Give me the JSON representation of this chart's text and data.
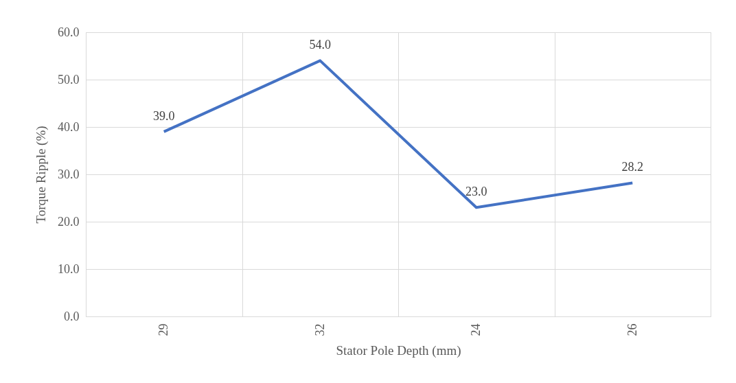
{
  "chart_data": {
    "type": "line",
    "xlabel": "Stator Pole Depth (mm)",
    "ylabel": "Torque Ripple (%)",
    "categories": [
      "29",
      "32",
      "24",
      "26"
    ],
    "series": [
      {
        "color": "#4472c4",
        "values": [
          39.0,
          54.0,
          23.0,
          28.2
        ],
        "value_labels": [
          "39.0",
          "54.0",
          "23.0",
          "28.2"
        ]
      }
    ],
    "ylim": [
      0,
      60
    ],
    "yticks": [
      {
        "value": 0,
        "label": "0.0"
      },
      {
        "value": 10,
        "label": "10.0"
      },
      {
        "value": 20,
        "label": "20.0"
      },
      {
        "value": 30,
        "label": "30.0"
      },
      {
        "value": 40,
        "label": "40.0"
      },
      {
        "value": 50,
        "label": "50.0"
      },
      {
        "value": 60,
        "label": "60.0"
      }
    ],
    "grid": true,
    "line_style": "solid"
  }
}
